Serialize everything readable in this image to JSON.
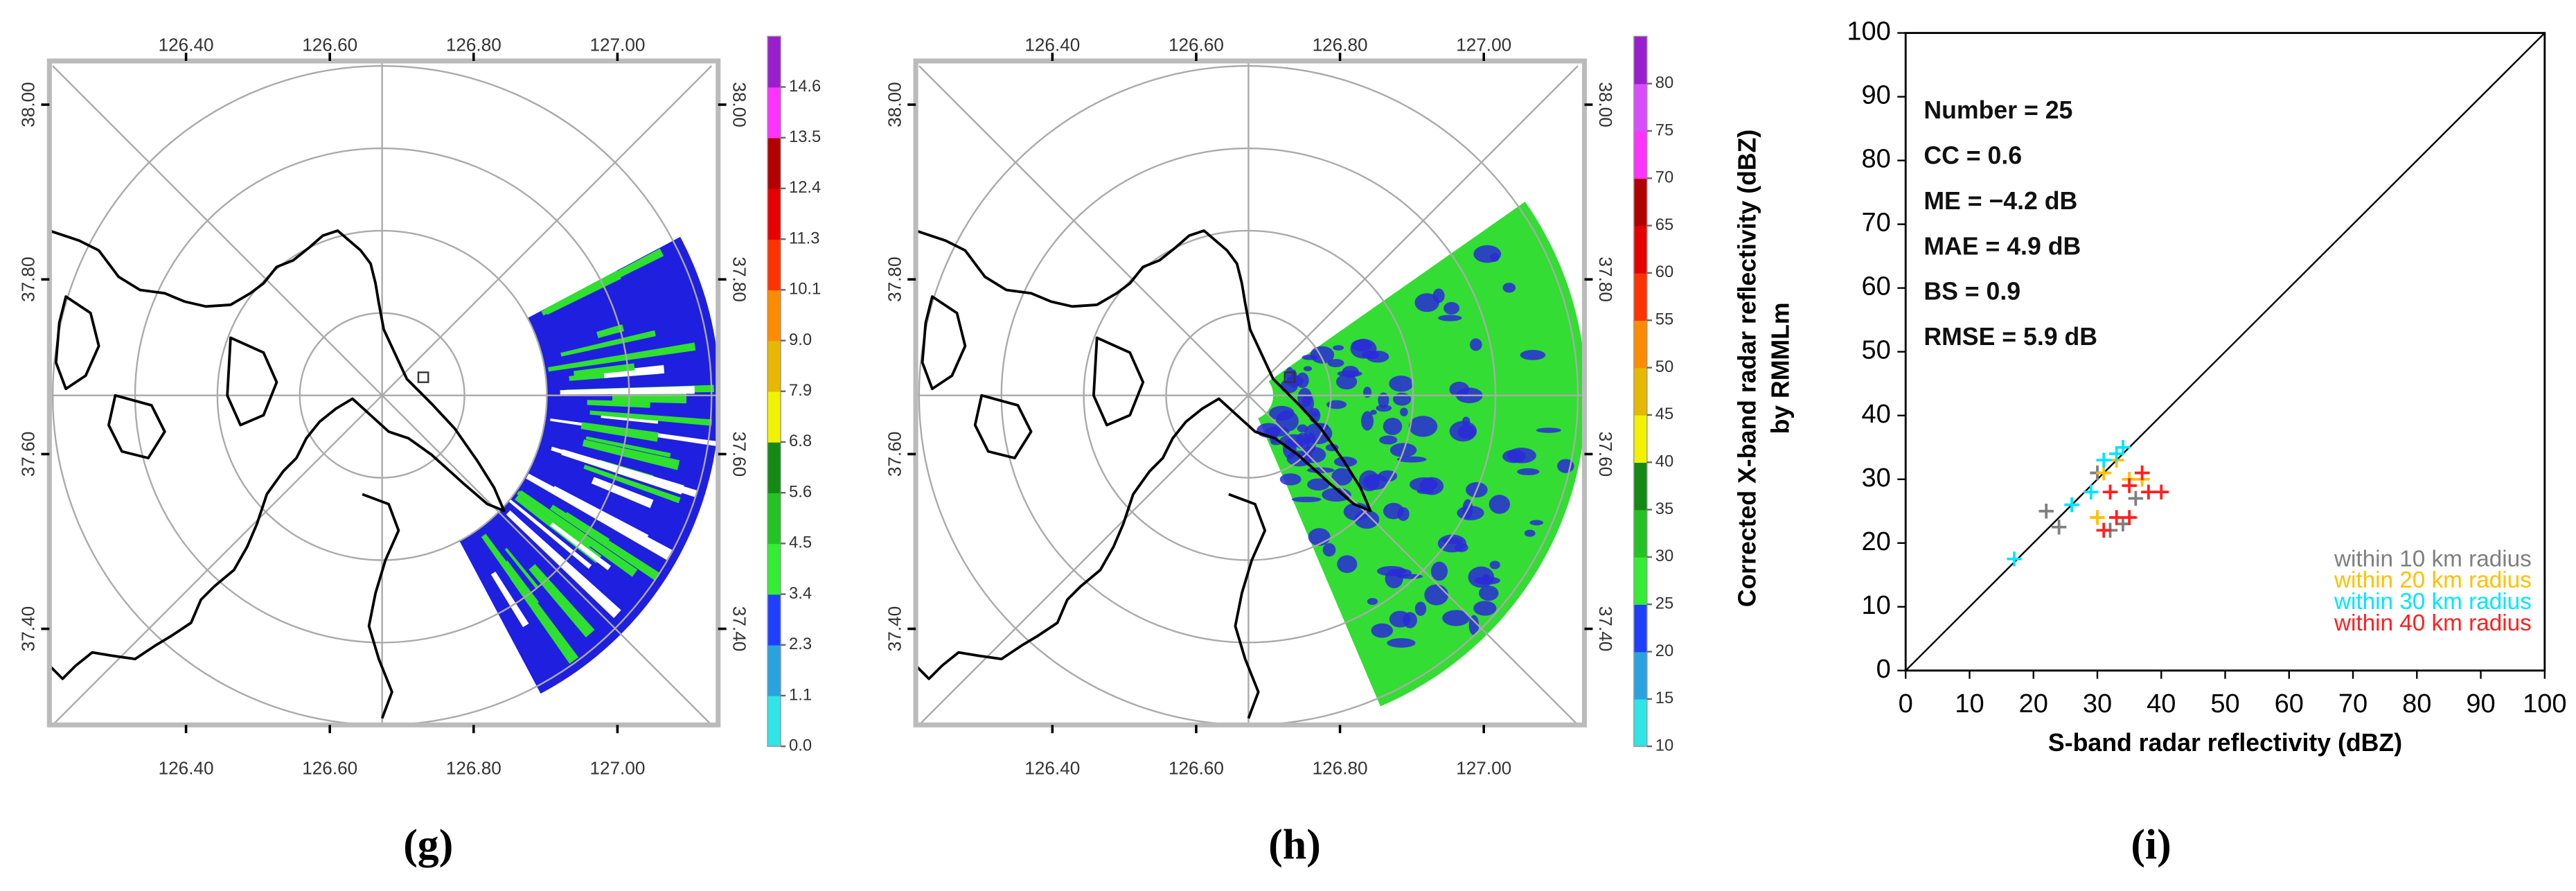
{
  "chart_data": [
    {
      "type": "map",
      "xlim": [
        126.21,
        127.14
      ],
      "xticks": [
        {
          "value": 126.4,
          "label": "126.40"
        },
        {
          "value": 126.6,
          "label": "126.60"
        },
        {
          "value": 126.8,
          "label": "126.80"
        },
        {
          "value": 127,
          "label": "127.00"
        }
      ],
      "ylim": [
        37.29,
        38.05
      ],
      "yticks": [
        {
          "value": 37.4,
          "label": "37.40"
        },
        {
          "value": 37.6,
          "label": "37.60"
        },
        {
          "value": 37.8,
          "label": "37.80"
        },
        {
          "value": 38,
          "label": "38.00"
        }
      ],
      "colorbar_ticks": [
        {
          "value": 0,
          "label": "0.0"
        },
        1.1,
        2.3,
        3.4,
        4.5,
        5.6,
        6.8,
        7.9,
        {
          "value": 9,
          "label": "9.0"
        },
        10.1,
        11.3,
        12.4,
        13.5,
        14.6
      ],
      "colorbar_colors": [
        "#2ee6e6",
        "#29a3e0",
        "#1f3fff",
        "#33ee33",
        "#22c322",
        "#138a13",
        "#f2f200",
        "#e6b800",
        "#ff8c00",
        "#ff3300",
        "#e60000",
        "#b30000",
        "#ff33ff",
        "#9a1ecf"
      ],
      "caption": "(g)"
    },
    {
      "type": "map",
      "xlim": [
        126.21,
        127.14
      ],
      "xticks": [
        {
          "value": 126.4,
          "label": "126.40"
        },
        {
          "value": 126.6,
          "label": "126.60"
        },
        {
          "value": 126.8,
          "label": "126.80"
        },
        {
          "value": 127,
          "label": "127.00"
        }
      ],
      "ylim": [
        37.29,
        38.05
      ],
      "yticks": [
        {
          "value": 37.4,
          "label": "37.40"
        },
        {
          "value": 37.6,
          "label": "37.60"
        },
        {
          "value": 37.8,
          "label": "37.80"
        },
        {
          "value": 38,
          "label": "38.00"
        }
      ],
      "colorbar_ticks": [
        10,
        15,
        20,
        25,
        30,
        35,
        40,
        45,
        50,
        55,
        60,
        65,
        70,
        75,
        80
      ],
      "colorbar_colors": [
        "#2ee6e6",
        "#29a3e0",
        "#1f3fff",
        "#33ee33",
        "#22c322",
        "#138a13",
        "#f2f200",
        "#e6b800",
        "#ff8c00",
        "#ff3300",
        "#e60000",
        "#b30000",
        "#ff33ff",
        "#d94dff",
        "#9a1ecf"
      ],
      "caption": "(h)"
    },
    {
      "type": "scatter",
      "xlabel": "S-band radar reflectivity (dBZ)",
      "ylabel": [
        "Corrected X-band radar reflectivity (dBZ)",
        "by RMMLm"
      ],
      "xlim": [
        0,
        100
      ],
      "xticks": [
        0,
        10,
        20,
        30,
        40,
        50,
        60,
        70,
        80,
        90,
        100
      ],
      "ylim": [
        0,
        100
      ],
      "yticks": [
        0,
        10,
        20,
        30,
        40,
        50,
        60,
        70,
        80,
        90,
        100
      ],
      "annotations": [
        "Number = 25",
        "CC = 0.6",
        "ME = −4.2 dB",
        "MAE = 4.9 dB",
        "BS = 0.9",
        "RMSE = 5.9 dB"
      ],
      "legend": "lower right",
      "series": [
        {
          "name": "within 10 km radius",
          "color": "#7f7f7f",
          "x": [
            22,
            24,
            30,
            32,
            34,
            36
          ],
          "values": [
            25,
            22.5,
            31,
            22,
            23,
            27
          ]
        },
        {
          "name": "within 20 km radius",
          "color": "#ffc000",
          "x": [
            31,
            33,
            30,
            35,
            37
          ],
          "values": [
            31,
            33,
            24,
            30,
            30
          ]
        },
        {
          "name": "within 30 km radius",
          "color": "#00e5ff",
          "x": [
            17,
            26,
            29,
            33,
            31,
            34
          ],
          "values": [
            17.5,
            26,
            28,
            34,
            33,
            35
          ]
        },
        {
          "name": "within 40 km radius",
          "color": "#ff2020",
          "x": [
            32,
            35,
            38,
            40,
            33,
            35,
            31,
            37
          ],
          "values": [
            28,
            29,
            28,
            28,
            24,
            24,
            22,
            31
          ]
        }
      ],
      "caption": "(i)"
    }
  ]
}
